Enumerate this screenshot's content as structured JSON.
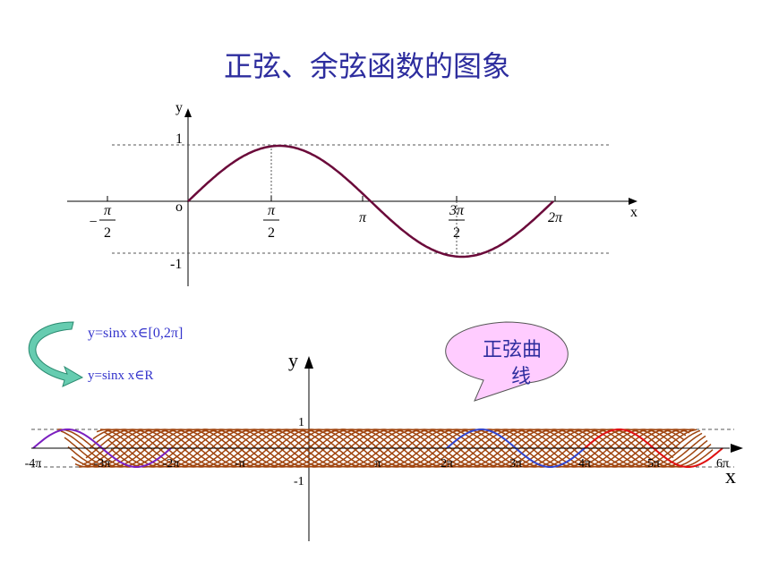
{
  "title": "正弦、余弦函数的图象",
  "top_graph": {
    "y_label": "y",
    "x_label": "x",
    "origin": "o",
    "one": "1",
    "minus_one": "-1",
    "ticks": [
      {
        "sign": "−",
        "num": "π",
        "den": "2"
      },
      {
        "num": "π",
        "den": "2"
      },
      "π",
      {
        "num": "3π",
        "den": "2"
      },
      "2π"
    ]
  },
  "legend": {
    "line1": "y=sinx   x∈[0,2π]",
    "line2": "y=sinx   x∈R"
  },
  "callout": {
    "line1": "正弦曲",
    "line2": "线"
  },
  "bottom_graph": {
    "y_label": "y",
    "x_label": "x",
    "one": "1",
    "minus_one": "-1",
    "ticks": [
      "-4π",
      "-3π",
      "-2π",
      "-π",
      "π",
      "2π",
      "3π",
      "4π",
      "5π",
      "6π"
    ]
  }
}
